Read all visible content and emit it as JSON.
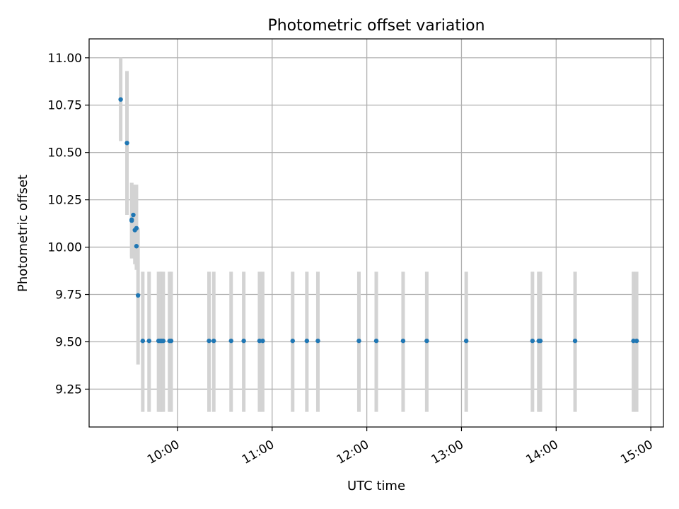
{
  "chart_data": {
    "type": "scatter",
    "title": "Photometric offset variation",
    "xlabel": "UTC time",
    "ylabel": "Photometric offset",
    "x_axis_type": "time",
    "xlim": [
      "09:04",
      "15:08"
    ],
    "ylim": [
      9.05,
      11.1
    ],
    "xticks": [
      "10:00",
      "11:00",
      "12:00",
      "13:00",
      "14:00",
      "15:00"
    ],
    "yticks": [
      "9.25",
      "9.50",
      "9.75",
      "10.00",
      "10.25",
      "10.50",
      "10.75",
      "11.00"
    ],
    "grid": true,
    "legend": "none",
    "marker_color": "#1f77b4",
    "errorbar_color": "#d3d3d3",
    "points": [
      {
        "time": "09:24",
        "offset": 10.78,
        "err_low": 10.56,
        "err_high": 11.0
      },
      {
        "time": "09:28",
        "offset": 10.55,
        "err_low": 10.17,
        "err_high": 10.93
      },
      {
        "time": "09:31",
        "offset": 10.14,
        "err_low": 9.94,
        "err_high": 10.34
      },
      {
        "time": "09:31",
        "offset": 10.145,
        "err_low": 9.95,
        "err_high": 10.34
      },
      {
        "time": "09:32",
        "offset": 10.17,
        "err_low": 9.98,
        "err_high": 10.33
      },
      {
        "time": "09:33",
        "offset": 10.09,
        "err_low": 9.91,
        "err_high": 10.32
      },
      {
        "time": "09:34",
        "offset": 10.1,
        "err_low": 9.9,
        "err_high": 10.33
      },
      {
        "time": "09:34",
        "offset": 10.005,
        "err_low": 9.88,
        "err_high": 10.14
      },
      {
        "time": "09:35",
        "offset": 9.745,
        "err_low": 9.38,
        "err_high": 10.1
      },
      {
        "time": "09:38",
        "offset": 9.505,
        "err_low": 9.13,
        "err_high": 9.87
      },
      {
        "time": "09:42",
        "offset": 9.505,
        "err_low": 9.13,
        "err_high": 9.87
      },
      {
        "time": "09:48",
        "offset": 9.505,
        "err_low": 9.13,
        "err_high": 9.87
      },
      {
        "time": "09:49",
        "offset": 9.505,
        "err_low": 9.13,
        "err_high": 9.87
      },
      {
        "time": "09:50",
        "offset": 9.505,
        "err_low": 9.13,
        "err_high": 9.87
      },
      {
        "time": "09:51",
        "offset": 9.505,
        "err_low": 9.13,
        "err_high": 9.87
      },
      {
        "time": "09:55",
        "offset": 9.505,
        "err_low": 9.13,
        "err_high": 9.87
      },
      {
        "time": "09:56",
        "offset": 9.505,
        "err_low": 9.13,
        "err_high": 9.87
      },
      {
        "time": "10:20",
        "offset": 9.505,
        "err_low": 9.13,
        "err_high": 9.87
      },
      {
        "time": "10:23",
        "offset": 9.505,
        "err_low": 9.13,
        "err_high": 9.87
      },
      {
        "time": "10:34",
        "offset": 9.505,
        "err_low": 9.13,
        "err_high": 9.87
      },
      {
        "time": "10:42",
        "offset": 9.505,
        "err_low": 9.13,
        "err_high": 9.87
      },
      {
        "time": "10:52",
        "offset": 9.505,
        "err_low": 9.13,
        "err_high": 9.87
      },
      {
        "time": "10:54",
        "offset": 9.505,
        "err_low": 9.13,
        "err_high": 9.87
      },
      {
        "time": "11:13",
        "offset": 9.505,
        "err_low": 9.13,
        "err_high": 9.87
      },
      {
        "time": "11:22",
        "offset": 9.505,
        "err_low": 9.13,
        "err_high": 9.87
      },
      {
        "time": "11:29",
        "offset": 9.505,
        "err_low": 9.13,
        "err_high": 9.87
      },
      {
        "time": "11:55",
        "offset": 9.505,
        "err_low": 9.13,
        "err_high": 9.87
      },
      {
        "time": "12:06",
        "offset": 9.505,
        "err_low": 9.13,
        "err_high": 9.87
      },
      {
        "time": "12:23",
        "offset": 9.505,
        "err_low": 9.13,
        "err_high": 9.87
      },
      {
        "time": "12:38",
        "offset": 9.505,
        "err_low": 9.13,
        "err_high": 9.87
      },
      {
        "time": "13:03",
        "offset": 9.505,
        "err_low": 9.13,
        "err_high": 9.87
      },
      {
        "time": "13:45",
        "offset": 9.505,
        "err_low": 9.13,
        "err_high": 9.87
      },
      {
        "time": "13:49",
        "offset": 9.505,
        "err_low": 9.13,
        "err_high": 9.87
      },
      {
        "time": "13:50",
        "offset": 9.505,
        "err_low": 9.13,
        "err_high": 9.87
      },
      {
        "time": "14:12",
        "offset": 9.505,
        "err_low": 9.13,
        "err_high": 9.87
      },
      {
        "time": "14:49",
        "offset": 9.505,
        "err_low": 9.13,
        "err_high": 9.87
      },
      {
        "time": "14:51",
        "offset": 9.505,
        "err_low": 9.13,
        "err_high": 9.87
      }
    ]
  }
}
